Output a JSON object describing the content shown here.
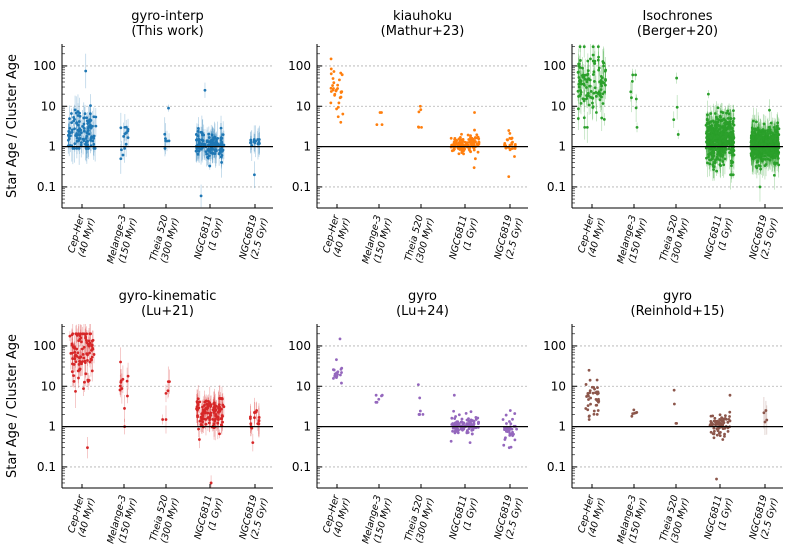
{
  "figure": {
    "ylabel": "Star Age / Cluster Age",
    "yticks": [
      "0.1",
      "1",
      "10",
      "100"
    ],
    "ytick_values": [
      0.1,
      1,
      10,
      100
    ],
    "reference_line": 1
  },
  "chart_data": [
    {
      "type": "scatter",
      "title": [
        "gyro-interp",
        "(This work)"
      ],
      "color": "#1f77b4",
      "yscale": "log",
      "ylim": [
        0.03,
        350
      ],
      "xlabel": "",
      "ylabel": "Star Age / Cluster Age",
      "categories": [
        [
          "Cep-Her",
          "(40 Myr)"
        ],
        [
          "Melange-3",
          "(150 Myr)"
        ],
        [
          "Theia 520",
          "(300 Myr)"
        ],
        [
          "NGC6811",
          "(1 Gyr)"
        ],
        [
          "NGC6819",
          "(2.5 Gyr)"
        ]
      ],
      "series": [
        {
          "cluster": "Cep-Her",
          "n_points": 110,
          "median": 2.4,
          "spread_dex": 0.3,
          "min": 0.9,
          "max": 75,
          "errorbars": true
        },
        {
          "cluster": "Melange-3",
          "n_points": 14,
          "median": 1.6,
          "spread_dex": 0.18,
          "min": 0.5,
          "max": 3,
          "errorbars": true
        },
        {
          "cluster": "Theia 520",
          "n_points": 7,
          "median": 1.2,
          "spread_dex": 0.15,
          "min": 0.9,
          "max": 9,
          "errorbars": true
        },
        {
          "cluster": "NGC6811",
          "n_points": 140,
          "median": 1.1,
          "spread_dex": 0.15,
          "min": 0.06,
          "max": 25,
          "errorbars": true
        },
        {
          "cluster": "NGC6819",
          "n_points": 18,
          "median": 1.3,
          "spread_dex": 0.05,
          "min": 0.2,
          "max": 1.5,
          "errorbars": true
        }
      ]
    },
    {
      "type": "scatter",
      "title": [
        "kiauhoku",
        "(Mathur+23)"
      ],
      "color": "#ff7f0e",
      "yscale": "log",
      "ylim": [
        0.03,
        350
      ],
      "xlabel": "",
      "ylabel": "",
      "categories": [
        [
          "Cep-Her",
          "(40 Myr)"
        ],
        [
          "Melange-3",
          "(150 Myr)"
        ],
        [
          "Theia 520",
          "(300 Myr)"
        ],
        [
          "NGC6811",
          "(1 Gyr)"
        ],
        [
          "NGC6819",
          "(2.5 Gyr)"
        ]
      ],
      "series": [
        {
          "cluster": "Cep-Her",
          "n_points": 32,
          "median": 22,
          "spread_dex": 0.25,
          "min": 4,
          "max": 150,
          "errorbars": false
        },
        {
          "cluster": "Melange-3",
          "n_points": 4,
          "median": 4.5,
          "spread_dex": 0.15,
          "min": 3.5,
          "max": 7,
          "errorbars": false
        },
        {
          "cluster": "Theia 520",
          "n_points": 6,
          "median": 4.5,
          "spread_dex": 0.2,
          "min": 3,
          "max": 10,
          "errorbars": false
        },
        {
          "cluster": "NGC6811",
          "n_points": 130,
          "median": 1.1,
          "spread_dex": 0.12,
          "min": 0.3,
          "max": 7,
          "errorbars": false
        },
        {
          "cluster": "NGC6819",
          "n_points": 28,
          "median": 1.1,
          "spread_dex": 0.12,
          "min": 0.18,
          "max": 2.5,
          "errorbars": false
        }
      ]
    },
    {
      "type": "scatter",
      "title": [
        "Isochrones",
        "(Berger+20)"
      ],
      "color": "#2ca02c",
      "yscale": "log",
      "ylim": [
        0.03,
        350
      ],
      "xlabel": "",
      "ylabel": "",
      "categories": [
        [
          "Cep-Her",
          "(40 Myr)"
        ],
        [
          "Melange-3",
          "(150 Myr)"
        ],
        [
          "Theia 520",
          "(300 Myr)"
        ],
        [
          "NGC6811",
          "(1 Gyr)"
        ],
        [
          "NGC6819",
          "(2.5 Gyr)"
        ]
      ],
      "series": [
        {
          "cluster": "Cep-Her",
          "n_points": 120,
          "median": 40,
          "spread_dex": 0.4,
          "min": 3,
          "max": 300,
          "errorbars": true
        },
        {
          "cluster": "Melange-3",
          "n_points": 8,
          "median": 15,
          "spread_dex": 0.3,
          "min": 3,
          "max": 60,
          "errorbars": true
        },
        {
          "cluster": "Theia 520",
          "n_points": 4,
          "median": 8,
          "spread_dex": 0.25,
          "min": 2,
          "max": 50,
          "errorbars": true
        },
        {
          "cluster": "NGC6811",
          "n_points": 420,
          "median": 1.5,
          "spread_dex": 0.3,
          "min": 0.2,
          "max": 20,
          "errorbars": true
        },
        {
          "cluster": "NGC6819",
          "n_points": 520,
          "median": 1.1,
          "spread_dex": 0.2,
          "min": 0.1,
          "max": 8,
          "errorbars": true
        }
      ]
    },
    {
      "type": "scatter",
      "title": [
        "gyro-kinematic",
        "(Lu+21)"
      ],
      "color": "#d62728",
      "yscale": "log",
      "ylim": [
        0.03,
        350
      ],
      "xlabel": "",
      "ylabel": "Star Age / Cluster Age",
      "categories": [
        [
          "Cep-Her",
          "(40 Myr)"
        ],
        [
          "Melange-3",
          "(150 Myr)"
        ],
        [
          "Theia 520",
          "(300 Myr)"
        ],
        [
          "NGC6811",
          "(1 Gyr)"
        ],
        [
          "NGC6819",
          "(2.5 Gyr)"
        ]
      ],
      "series": [
        {
          "cluster": "Cep-Her",
          "n_points": 95,
          "median": 60,
          "spread_dex": 0.35,
          "min": 0.3,
          "max": 200,
          "errorbars": true
        },
        {
          "cluster": "Melange-3",
          "n_points": 12,
          "median": 15,
          "spread_dex": 0.3,
          "min": 1,
          "max": 40,
          "errorbars": true
        },
        {
          "cluster": "Theia 520",
          "n_points": 6,
          "median": 5,
          "spread_dex": 0.3,
          "min": 1.5,
          "max": 13,
          "errorbars": true
        },
        {
          "cluster": "NGC6811",
          "n_points": 120,
          "median": 2.2,
          "spread_dex": 0.2,
          "min": 0.04,
          "max": 5,
          "errorbars": true
        },
        {
          "cluster": "NGC6819",
          "n_points": 18,
          "median": 1.6,
          "spread_dex": 0.12,
          "min": 0.4,
          "max": 2.5,
          "errorbars": true
        }
      ]
    },
    {
      "type": "scatter",
      "title": [
        "gyro",
        "(Lu+24)"
      ],
      "color": "#9467bd",
      "yscale": "log",
      "ylim": [
        0.03,
        350
      ],
      "xlabel": "",
      "ylabel": "",
      "categories": [
        [
          "Cep-Her",
          "(40 Myr)"
        ],
        [
          "Melange-3",
          "(150 Myr)"
        ],
        [
          "Theia 520",
          "(300 Myr)"
        ],
        [
          "NGC6811",
          "(1 Gyr)"
        ],
        [
          "NGC6819",
          "(2.5 Gyr)"
        ]
      ],
      "series": [
        {
          "cluster": "Cep-Her",
          "n_points": 18,
          "median": 20,
          "spread_dex": 0.15,
          "min": 12,
          "max": 150,
          "errorbars": false
        },
        {
          "cluster": "Melange-3",
          "n_points": 6,
          "median": 5,
          "spread_dex": 0.1,
          "min": 4,
          "max": 6,
          "errorbars": false
        },
        {
          "cluster": "Theia 520",
          "n_points": 6,
          "median": 4,
          "spread_dex": 0.2,
          "min": 2,
          "max": 11,
          "errorbars": false
        },
        {
          "cluster": "NGC6811",
          "n_points": 120,
          "median": 1.1,
          "spread_dex": 0.12,
          "min": 0.4,
          "max": 6,
          "errorbars": false
        },
        {
          "cluster": "NGC6819",
          "n_points": 40,
          "median": 0.9,
          "spread_dex": 0.2,
          "min": 0.3,
          "max": 2.5,
          "errorbars": false
        }
      ]
    },
    {
      "type": "scatter",
      "title": [
        "gyro",
        "(Reinhold+15)"
      ],
      "color": "#8c564b",
      "yscale": "log",
      "ylim": [
        0.03,
        350
      ],
      "xlabel": "",
      "ylabel": "",
      "categories": [
        [
          "Cep-Her",
          "(40 Myr)"
        ],
        [
          "Melange-3",
          "(150 Myr)"
        ],
        [
          "Theia 520",
          "(300 Myr)"
        ],
        [
          "NGC6811",
          "(1 Gyr)"
        ],
        [
          "NGC6819",
          "(2.5 Gyr)"
        ]
      ],
      "series": [
        {
          "cluster": "Cep-Her",
          "n_points": 40,
          "median": 5,
          "spread_dex": 0.3,
          "min": 1.5,
          "max": 25,
          "errorbars": false
        },
        {
          "cluster": "Melange-3",
          "n_points": 6,
          "median": 2.2,
          "spread_dex": 0.05,
          "min": 1.8,
          "max": 2.6,
          "errorbars": false
        },
        {
          "cluster": "Theia 520",
          "n_points": 4,
          "median": 1.8,
          "spread_dex": 0.2,
          "min": 1.2,
          "max": 8,
          "errorbars": false
        },
        {
          "cluster": "NGC6811",
          "n_points": 70,
          "median": 1.1,
          "spread_dex": 0.12,
          "min": 0.05,
          "max": 6,
          "errorbars": false
        },
        {
          "cluster": "NGC6819",
          "n_points": 4,
          "median": 1.8,
          "spread_dex": 0.1,
          "min": 1.3,
          "max": 2.5,
          "errorbars": true
        }
      ]
    }
  ]
}
